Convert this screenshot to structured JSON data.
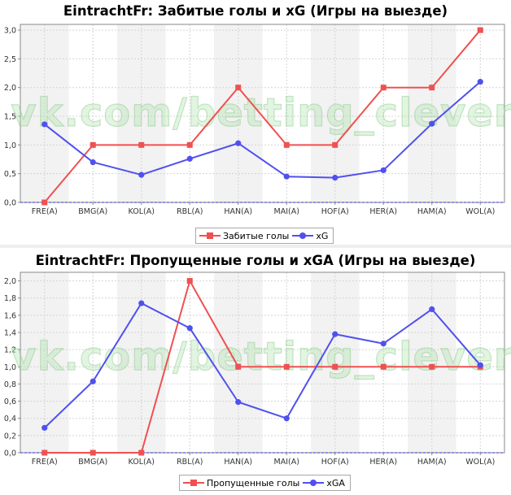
{
  "watermark": "vk.com/betting_clever",
  "colors": {
    "goals": "#f05050",
    "xg": "#5050f0",
    "zero_line": "#3030c0",
    "band": "#f2f2f2",
    "grid": "#d4d4d4",
    "axis": "#888888"
  },
  "chart_data": [
    {
      "type": "line",
      "title": "EintrachtFr: Забитые голы и xG (Игры на выезде)",
      "xlabel": "",
      "ylabel": "",
      "categories": [
        "FRE(A)",
        "BMG(A)",
        "KOL(A)",
        "RBL(A)",
        "HAN(A)",
        "MAI(A)",
        "HOF(A)",
        "HER(A)",
        "HAM(A)",
        "WOL(A)"
      ],
      "ylim": [
        0,
        3.1
      ],
      "yticks": [
        0.0,
        0.5,
        1.0,
        1.5,
        2.0,
        2.5,
        3.0
      ],
      "ytick_labels": [
        "0,0",
        "0,5",
        "1,0",
        "1,5",
        "2,0",
        "2,5",
        "3,0"
      ],
      "grid": true,
      "legend_position": "bottom-center",
      "series": [
        {
          "name": "Забитые голы",
          "marker": "square",
          "color": "#f05050",
          "values": [
            0,
            1,
            1,
            1,
            2,
            1,
            1,
            2,
            2,
            3
          ]
        },
        {
          "name": "xG",
          "marker": "circle",
          "color": "#5050f0",
          "values": [
            1.36,
            0.7,
            0.48,
            0.76,
            1.03,
            0.45,
            0.43,
            0.56,
            1.37,
            2.1
          ]
        }
      ]
    },
    {
      "type": "line",
      "title": "EintrachtFr: Пропущенные голы и xGA (Игры на выезде)",
      "xlabel": "",
      "ylabel": "",
      "categories": [
        "FRE(A)",
        "BMG(A)",
        "KOL(A)",
        "RBL(A)",
        "HAN(A)",
        "MAI(A)",
        "HOF(A)",
        "HER(A)",
        "HAM(A)",
        "WOL(A)"
      ],
      "ylim": [
        0,
        2.1
      ],
      "yticks": [
        0.0,
        0.2,
        0.4,
        0.6,
        0.8,
        1.0,
        1.2,
        1.4,
        1.6,
        1.8,
        2.0
      ],
      "ytick_labels": [
        "0,0",
        "0,2",
        "0,4",
        "0,6",
        "0,8",
        "1,0",
        "1,2",
        "1,4",
        "1,6",
        "1,8",
        "2,0"
      ],
      "grid": true,
      "legend_position": "bottom-center",
      "series": [
        {
          "name": "Пропущенные голы",
          "marker": "square",
          "color": "#f05050",
          "values": [
            0,
            0,
            0,
            2,
            1,
            1,
            1,
            1,
            1,
            1
          ]
        },
        {
          "name": "xGA",
          "marker": "circle",
          "color": "#5050f0",
          "values": [
            0.29,
            0.83,
            1.74,
            1.45,
            0.59,
            0.4,
            1.38,
            1.27,
            1.67,
            1.02
          ]
        }
      ]
    }
  ]
}
